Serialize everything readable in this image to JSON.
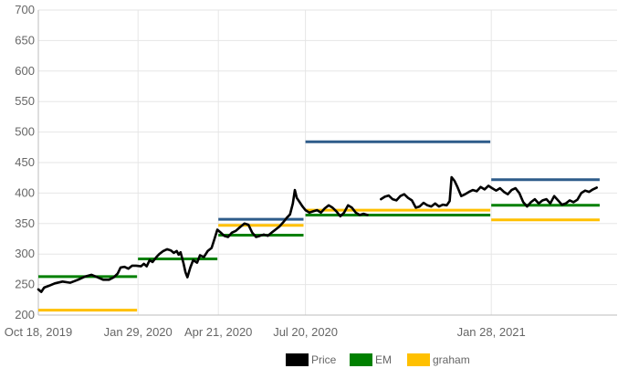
{
  "chart_data": {
    "type": "line",
    "title": "",
    "xlabel": "",
    "ylabel": "",
    "ylim": [
      200,
      700
    ],
    "yticks": [
      200,
      250,
      300,
      350,
      400,
      450,
      500,
      550,
      600,
      650,
      700
    ],
    "xlim": [
      "2019-10-18",
      "2021-06-07"
    ],
    "xticks": [
      {
        "date": "2019-10-18",
        "label": "Oct 18, 2019"
      },
      {
        "date": "2020-01-29",
        "label": "Jan 29, 2020"
      },
      {
        "date": "2020-04-21",
        "label": "Apr 21, 2020"
      },
      {
        "date": "2020-07-20",
        "label": "Jul 20, 2020"
      },
      {
        "date": "2021-01-28",
        "label": "Jan 28, 2021"
      }
    ],
    "grid": true,
    "legend_position": "bottom-center",
    "legend": [
      {
        "name": "Price",
        "color": "#000000"
      },
      {
        "name": "EM",
        "color": "#008000"
      },
      {
        "name": "graham",
        "color": "#ffc000"
      }
    ],
    "series": [
      {
        "name": "Price",
        "color": "#000000",
        "type": "line",
        "segments": [
          [
            [
              "2019-10-18",
              242
            ],
            [
              "2019-10-21",
              238
            ],
            [
              "2019-10-24",
              245
            ],
            [
              "2019-10-29",
              248
            ],
            [
              "2019-11-04",
              252
            ],
            [
              "2019-11-12",
              255
            ],
            [
              "2019-11-20",
              253
            ],
            [
              "2019-11-28",
              258
            ],
            [
              "2019-12-05",
              263
            ],
            [
              "2019-12-12",
              266
            ],
            [
              "2019-12-18",
              262
            ],
            [
              "2019-12-24",
              258
            ],
            [
              "2019-12-30",
              258
            ],
            [
              "2020-01-04",
              262
            ],
            [
              "2020-01-08",
              268
            ],
            [
              "2020-01-11",
              278
            ],
            [
              "2020-01-15",
              279
            ],
            [
              "2020-01-19",
              276
            ],
            [
              "2020-01-23",
              281
            ],
            [
              "2020-01-27",
              281
            ],
            [
              "2020-02-01",
              280
            ],
            [
              "2020-02-04",
              284
            ],
            [
              "2020-02-07",
              280
            ],
            [
              "2020-02-10",
              290
            ],
            [
              "2020-02-13",
              287
            ],
            [
              "2020-02-17",
              295
            ],
            [
              "2020-02-20",
              300
            ],
            [
              "2020-02-24",
              305
            ],
            [
              "2020-02-28",
              308
            ],
            [
              "2020-03-03",
              306
            ],
            [
              "2020-03-06",
              302
            ],
            [
              "2020-03-09",
              305
            ],
            [
              "2020-03-11",
              299
            ],
            [
              "2020-03-13",
              303
            ],
            [
              "2020-03-16",
              285
            ],
            [
              "2020-03-18",
              270
            ],
            [
              "2020-03-20",
              262
            ],
            [
              "2020-03-23",
              278
            ],
            [
              "2020-03-26",
              290
            ],
            [
              "2020-03-30",
              286
            ],
            [
              "2020-04-02",
              298
            ],
            [
              "2020-04-06",
              295
            ],
            [
              "2020-04-10",
              305
            ],
            [
              "2020-04-14",
              310
            ],
            [
              "2020-04-17",
              325
            ],
            [
              "2020-04-20",
              340
            ],
            [
              "2020-04-23",
              336
            ],
            [
              "2020-04-27",
              330
            ],
            [
              "2020-05-01",
              328
            ],
            [
              "2020-05-05",
              335
            ],
            [
              "2020-05-09",
              338
            ],
            [
              "2020-05-14",
              345
            ],
            [
              "2020-05-18",
              350
            ],
            [
              "2020-05-22",
              348
            ],
            [
              "2020-05-26",
              335
            ],
            [
              "2020-05-30",
              328
            ],
            [
              "2020-06-03",
              330
            ],
            [
              "2020-06-07",
              332
            ],
            [
              "2020-06-11",
              330
            ],
            [
              "2020-06-15",
              335
            ],
            [
              "2020-06-19",
              340
            ],
            [
              "2020-06-23",
              345
            ],
            [
              "2020-06-27",
              352
            ],
            [
              "2020-07-01",
              360
            ],
            [
              "2020-07-04",
              365
            ],
            [
              "2020-07-07",
              383
            ],
            [
              "2020-07-09",
              405
            ],
            [
              "2020-07-11",
              392
            ],
            [
              "2020-07-14",
              385
            ],
            [
              "2020-07-17",
              378
            ],
            [
              "2020-07-20",
              372
            ],
            [
              "2020-07-24",
              368
            ],
            [
              "2020-07-28",
              370
            ],
            [
              "2020-08-01",
              372
            ],
            [
              "2020-08-05",
              368
            ],
            [
              "2020-08-09",
              375
            ],
            [
              "2020-08-13",
              380
            ],
            [
              "2020-08-17",
              376
            ],
            [
              "2020-08-21",
              370
            ],
            [
              "2020-08-25",
              362
            ],
            [
              "2020-08-29",
              368
            ],
            [
              "2020-09-02",
              380
            ],
            [
              "2020-09-06",
              376
            ],
            [
              "2020-09-10",
              368
            ],
            [
              "2020-09-14",
              364
            ],
            [
              "2020-09-18",
              366
            ],
            [
              "2020-09-22",
              364
            ]
          ],
          [
            [
              "2020-10-06",
              390
            ],
            [
              "2020-10-10",
              394
            ],
            [
              "2020-10-14",
              396
            ],
            [
              "2020-10-18",
              390
            ],
            [
              "2020-10-22",
              388
            ],
            [
              "2020-10-26",
              395
            ],
            [
              "2020-10-30",
              398
            ],
            [
              "2020-11-03",
              392
            ],
            [
              "2020-11-07",
              388
            ],
            [
              "2020-11-11",
              376
            ],
            [
              "2020-11-15",
              378
            ],
            [
              "2020-11-19",
              384
            ],
            [
              "2020-11-23",
              380
            ],
            [
              "2020-11-27",
              378
            ],
            [
              "2020-12-01",
              383
            ],
            [
              "2020-12-05",
              378
            ],
            [
              "2020-12-09",
              381
            ],
            [
              "2020-12-13",
              380
            ],
            [
              "2020-12-16",
              387
            ],
            [
              "2020-12-18",
              426
            ],
            [
              "2020-12-21",
              420
            ],
            [
              "2020-12-24",
              410
            ],
            [
              "2020-12-28",
              395
            ],
            [
              "2021-01-01",
              398
            ],
            [
              "2021-01-05",
              402
            ],
            [
              "2021-01-09",
              405
            ],
            [
              "2021-01-13",
              403
            ],
            [
              "2021-01-17",
              410
            ],
            [
              "2021-01-21",
              406
            ],
            [
              "2021-01-25",
              412
            ],
            [
              "2021-01-29",
              408
            ],
            [
              "2021-02-02",
              404
            ],
            [
              "2021-02-06",
              408
            ],
            [
              "2021-02-10",
              402
            ],
            [
              "2021-02-14",
              398
            ],
            [
              "2021-02-18",
              405
            ],
            [
              "2021-02-22",
              408
            ],
            [
              "2021-02-26",
              400
            ],
            [
              "2021-03-02",
              385
            ],
            [
              "2021-03-06",
              378
            ],
            [
              "2021-03-10",
              385
            ],
            [
              "2021-03-14",
              390
            ],
            [
              "2021-03-18",
              383
            ],
            [
              "2021-03-22",
              388
            ],
            [
              "2021-03-26",
              390
            ],
            [
              "2021-03-30",
              383
            ],
            [
              "2021-04-03",
              395
            ],
            [
              "2021-04-07",
              388
            ],
            [
              "2021-04-11",
              381
            ],
            [
              "2021-04-15",
              383
            ],
            [
              "2021-04-19",
              388
            ],
            [
              "2021-04-23",
              385
            ],
            [
              "2021-04-27",
              389
            ],
            [
              "2021-05-01",
              400
            ],
            [
              "2021-05-05",
              404
            ],
            [
              "2021-05-09",
              402
            ],
            [
              "2021-05-13",
              406
            ],
            [
              "2021-05-17",
              409
            ]
          ]
        ]
      },
      {
        "name": "EM",
        "color": "#008000",
        "type": "step",
        "levels": [
          {
            "start": "2019-10-18",
            "end": "2020-01-28",
            "value": 263
          },
          {
            "start": "2020-01-29",
            "end": "2020-04-20",
            "value": 292
          },
          {
            "start": "2020-04-21",
            "end": "2020-07-18",
            "value": 331
          },
          {
            "start": "2020-07-20",
            "end": "2021-01-27",
            "value": 364
          },
          {
            "start": "2021-01-28",
            "end": "2021-05-20",
            "value": 380
          }
        ]
      },
      {
        "name": "graham",
        "color": "#ffc000",
        "type": "step",
        "levels": [
          {
            "start": "2019-10-18",
            "end": "2020-01-28",
            "value": 208
          },
          {
            "start": "2020-04-21",
            "end": "2020-07-18",
            "value": 347
          },
          {
            "start": "2020-07-20",
            "end": "2021-01-27",
            "value": 372
          },
          {
            "start": "2021-01-28",
            "end": "2021-05-20",
            "value": 356
          }
        ]
      },
      {
        "color": "#2e5c8a",
        "type": "step",
        "levels": [
          {
            "start": "2020-04-21",
            "end": "2020-07-18",
            "value": 357
          },
          {
            "start": "2020-07-20",
            "end": "2021-01-27",
            "value": 484
          },
          {
            "start": "2021-01-28",
            "end": "2021-05-20",
            "value": 422
          }
        ]
      }
    ]
  }
}
